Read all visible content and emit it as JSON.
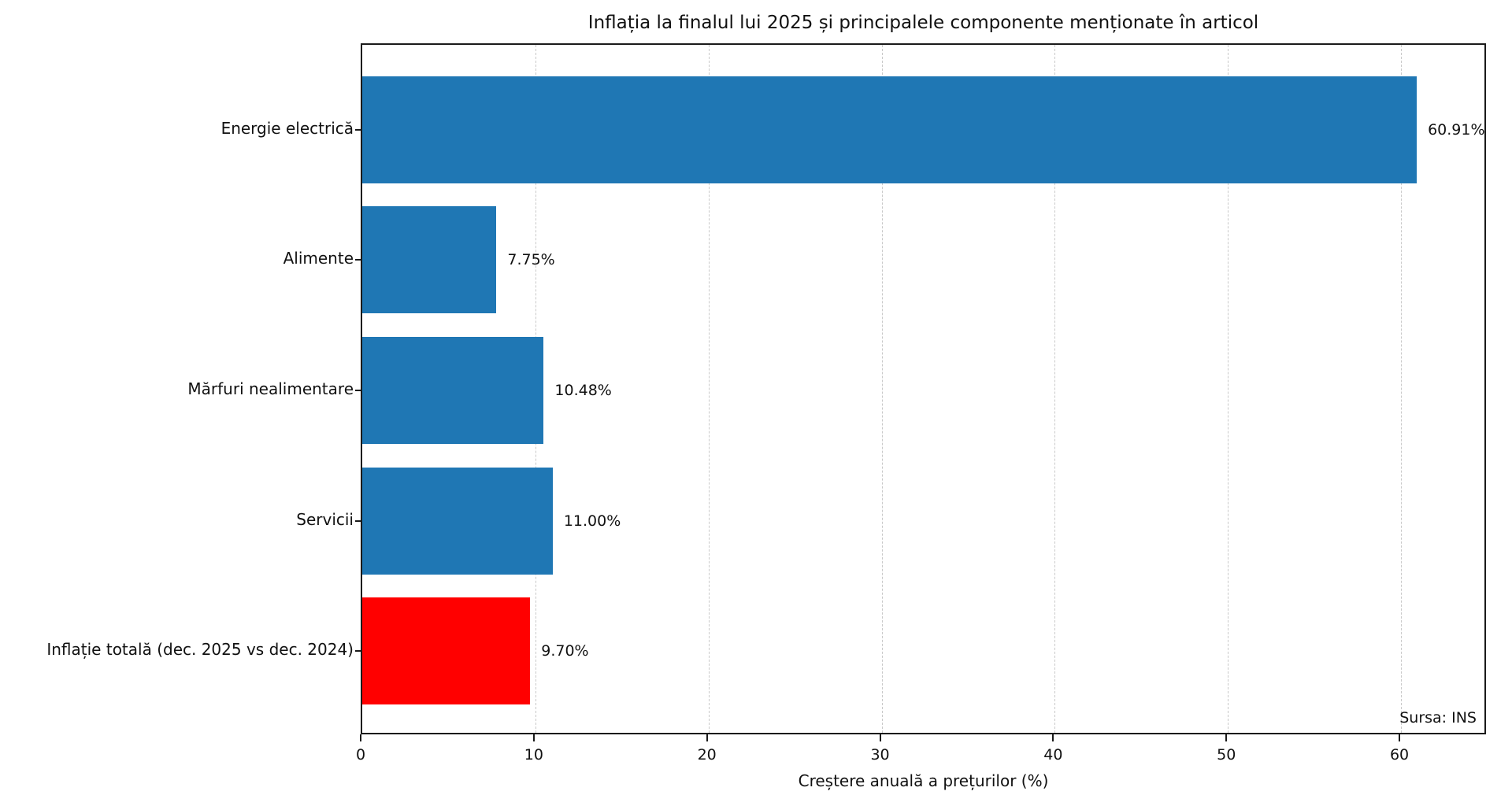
{
  "chart_data": {
    "type": "bar",
    "orientation": "horizontal",
    "title": "Inflația la finalul lui 2025 și principalele componente menționate în articol",
    "xlabel": "Creștere anuală a prețurilor (%)",
    "ylabel": "",
    "categories": [
      "Energie electrică",
      "Alimente",
      "Mărfuri nealimentare",
      "Servicii",
      "Inflație totală (dec. 2025 vs dec. 2024)"
    ],
    "values": [
      60.91,
      7.75,
      10.48,
      11.0,
      9.7
    ],
    "value_labels": [
      "60.91%",
      "7.75%",
      "10.48%",
      "11.00%",
      "9.70%"
    ],
    "bar_colors": [
      "#1f77b4",
      "#1f77b4",
      "#1f77b4",
      "#1f77b4",
      "#ff0000"
    ],
    "xlim": [
      0,
      65
    ],
    "xticks": [
      0,
      10,
      20,
      30,
      40,
      50,
      60
    ],
    "grid": "vertical-dashed",
    "gridline_color": "#c9c9c9",
    "legend": "none",
    "annotation": "Sursa: INS"
  },
  "colors": {
    "default_bar": "#1f77b4",
    "highlight_bar": "#ff0000",
    "text": "#111111",
    "spine": "#1a1a1a",
    "background": "#ffffff"
  }
}
